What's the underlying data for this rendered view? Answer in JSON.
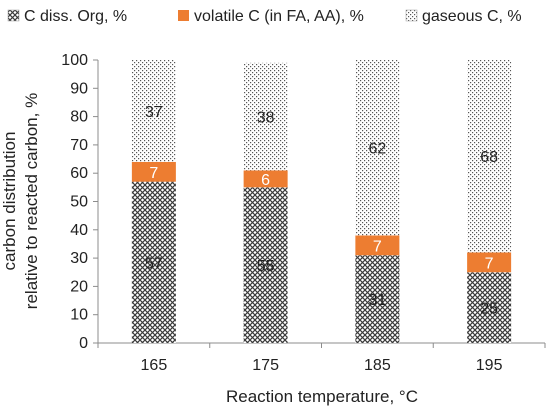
{
  "chart_data": {
    "type": "bar",
    "stacked": true,
    "categories": [
      "165",
      "175",
      "185",
      "195"
    ],
    "series": [
      {
        "name": "C diss. Org, %",
        "values": [
          57,
          55,
          31,
          25
        ],
        "pattern": "crosshatch",
        "color": "#444444"
      },
      {
        "name": "volatile C (in FA, AA), %",
        "values": [
          7,
          6,
          7,
          7
        ],
        "pattern": "solid",
        "color": "#ED7D31"
      },
      {
        "name": "gaseous C, %",
        "values": [
          37,
          38,
          62,
          68
        ],
        "pattern": "dots",
        "color": "#555555"
      }
    ],
    "xlabel": "Reaction temperature, °C",
    "ylabel_lines": [
      "carbon distribution",
      "relative to reacted carbon, %"
    ],
    "ylim": [
      0,
      100
    ],
    "yticks": [
      0,
      10,
      20,
      30,
      40,
      50,
      60,
      70,
      80,
      90,
      100
    ],
    "legend_position": "top",
    "grid": false
  }
}
